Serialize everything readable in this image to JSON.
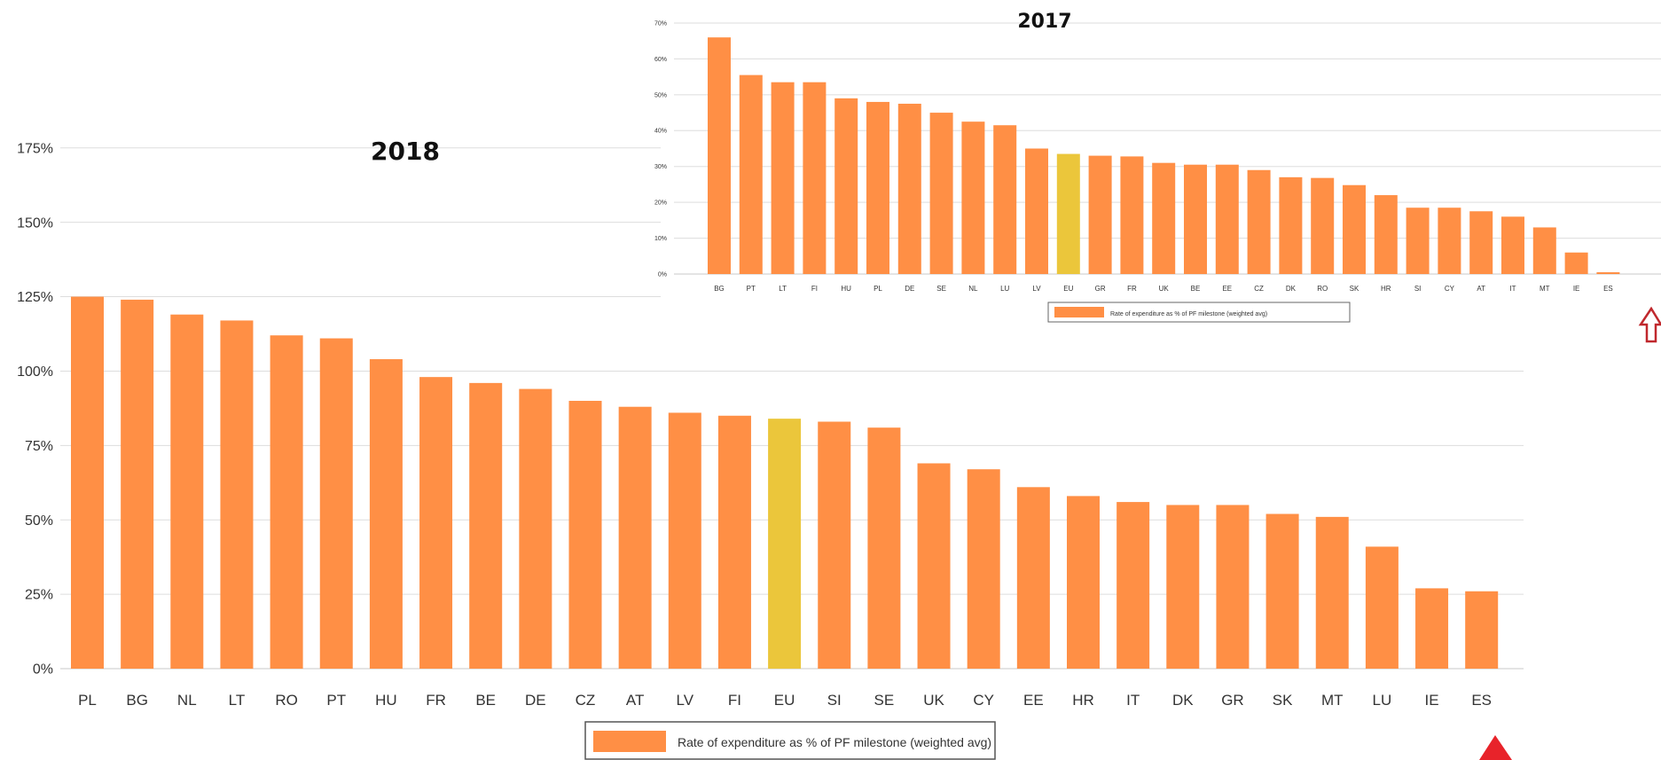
{
  "colors": {
    "bar": "#FF8F45",
    "bar_highlight": "#EBC63B",
    "grid": "#dddddd",
    "axis": "#c8c8c8",
    "arrow_red": "#E8232A",
    "arrow_outline": "#C0282D"
  },
  "icons": {
    "main_arrow": "red-up-triangle-icon",
    "inset_arrow": "outlined-up-arrow-icon"
  },
  "chart_data": [
    {
      "type": "bar",
      "title": "2018",
      "xlabel": "",
      "ylabel": "",
      "ylim": [
        0,
        1.8
      ],
      "yticks": [
        0,
        0.25,
        0.5,
        0.75,
        1.0,
        1.25,
        1.5,
        1.75
      ],
      "ytick_labels": [
        "0%",
        "25%",
        "50%",
        "75%",
        "100%",
        "125%",
        "150%",
        "175%"
      ],
      "grid": true,
      "legend_position": "bottom",
      "highlight_category": "EU",
      "annotation": "red up-triangle below ES",
      "categories": [
        "PL",
        "BG",
        "NL",
        "LT",
        "RO",
        "PT",
        "HU",
        "FR",
        "BE",
        "DE",
        "CZ",
        "AT",
        "LV",
        "FI",
        "EU",
        "SI",
        "SE",
        "UK",
        "CY",
        "EE",
        "HR",
        "IT",
        "DK",
        "GR",
        "SK",
        "MT",
        "LU",
        "IE",
        "ES"
      ],
      "series": [
        {
          "name": "Rate of expenditure as % of PF milestone (weighted avg)",
          "values": [
            1.25,
            1.24,
            1.19,
            1.17,
            1.12,
            1.11,
            1.04,
            0.98,
            0.96,
            0.94,
            0.9,
            0.88,
            0.86,
            0.85,
            0.84,
            0.83,
            0.81,
            0.69,
            0.67,
            0.61,
            0.58,
            0.56,
            0.55,
            0.55,
            0.52,
            0.51,
            0.41,
            0.27,
            0.26
          ]
        }
      ]
    },
    {
      "type": "bar",
      "title": "2017",
      "xlabel": "",
      "ylabel": "",
      "ylim": [
        0,
        0.7
      ],
      "yticks": [
        0,
        0.1,
        0.2,
        0.3,
        0.4,
        0.5,
        0.6,
        0.7
      ],
      "ytick_labels": [
        "0%",
        "10%",
        "20%",
        "30%",
        "40%",
        "50%",
        "60%",
        "70%"
      ],
      "grid": true,
      "legend_position": "bottom",
      "highlight_category": "EU",
      "annotation": "outlined up-arrow below ES",
      "categories": [
        "BG",
        "PT",
        "LT",
        "FI",
        "HU",
        "PL",
        "DE",
        "SE",
        "NL",
        "LU",
        "LV",
        "EU",
        "GR",
        "FR",
        "UK",
        "BE",
        "EE",
        "CZ",
        "DK",
        "RO",
        "SK",
        "HR",
        "SI",
        "CY",
        "AT",
        "IT",
        "MT",
        "IE",
        "ES"
      ],
      "series": [
        {
          "name": "Rate of expenditure as % of PF milestone (weighted avg)",
          "values": [
            0.66,
            0.555,
            0.535,
            0.535,
            0.49,
            0.48,
            0.475,
            0.45,
            0.425,
            0.415,
            0.35,
            0.335,
            0.33,
            0.328,
            0.31,
            0.305,
            0.305,
            0.29,
            0.27,
            0.268,
            0.248,
            0.22,
            0.185,
            0.185,
            0.175,
            0.16,
            0.13,
            0.06,
            0.005
          ]
        }
      ]
    }
  ]
}
